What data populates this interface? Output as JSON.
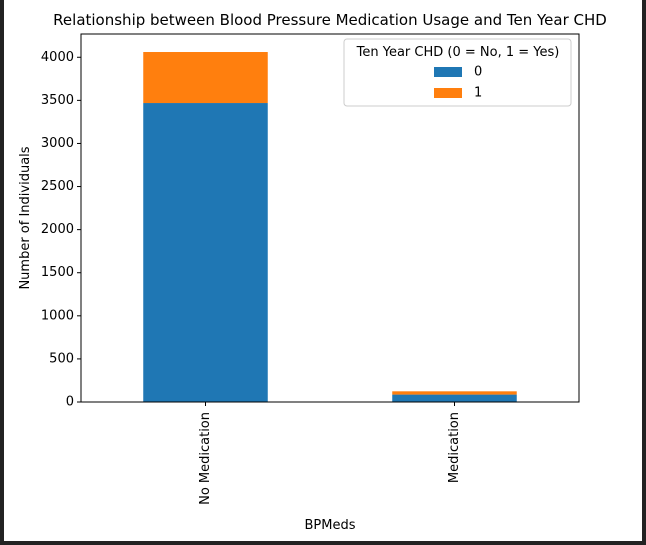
{
  "chart_data": {
    "type": "bar",
    "stacked": true,
    "title": "Relationship between Blood Pressure Medication Usage and Ten Year CHD",
    "xlabel": "BPMeds",
    "ylabel": "Number of Individuals",
    "categories": [
      "No Medication",
      "Medication"
    ],
    "series": [
      {
        "name": "0",
        "values": [
          3469,
          86
        ]
      },
      {
        "name": "1",
        "values": [
          592,
          38
        ]
      }
    ],
    "ylim": [
      0,
      4270
    ],
    "yticks": [
      0,
      500,
      1000,
      1500,
      2000,
      2500,
      3000,
      3500,
      4000
    ],
    "legend": {
      "title": "Ten Year CHD (0 = No, 1 = Yes)",
      "position": "top-right"
    },
    "colors": {
      "0": "#1f77b4",
      "1": "#ff7f0e"
    },
    "grid": false
  }
}
